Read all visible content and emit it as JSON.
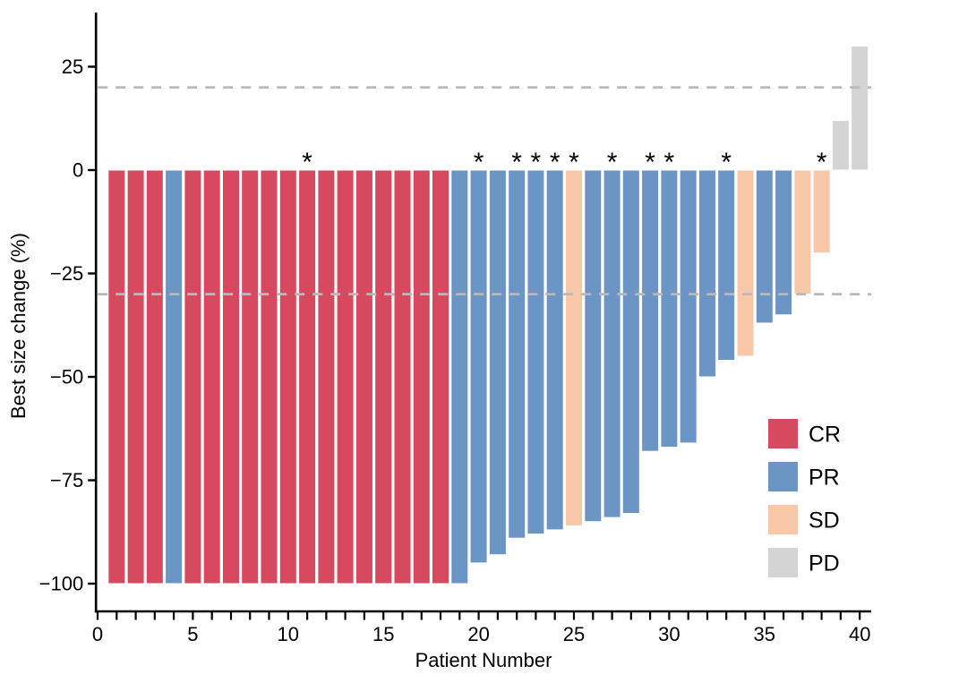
{
  "chart_data": {
    "type": "bar",
    "title": "",
    "xlabel": "Patient Number",
    "ylabel": "Best size change (%)",
    "x": [
      1,
      2,
      3,
      4,
      5,
      6,
      7,
      8,
      9,
      10,
      11,
      12,
      13,
      14,
      15,
      16,
      17,
      18,
      19,
      20,
      21,
      22,
      23,
      24,
      25,
      26,
      27,
      28,
      29,
      30,
      31,
      32,
      33,
      34,
      35,
      36,
      37,
      38,
      39,
      40
    ],
    "values": [
      -100,
      -100,
      -100,
      -100,
      -100,
      -100,
      -100,
      -100,
      -100,
      -100,
      -100,
      -100,
      -100,
      -100,
      -100,
      -100,
      -100,
      -100,
      -100,
      -95,
      -93,
      -89,
      -88,
      -87,
      -86,
      -85,
      -84,
      -83,
      -68,
      -67,
      -66,
      -50,
      -46,
      -45,
      -37,
      -35,
      -30,
      -20,
      12,
      30
    ],
    "response": [
      "CR",
      "CR",
      "CR",
      "PR",
      "CR",
      "CR",
      "CR",
      "CR",
      "CR",
      "CR",
      "CR",
      "CR",
      "CR",
      "CR",
      "CR",
      "CR",
      "CR",
      "CR",
      "PR",
      "PR",
      "PR",
      "PR",
      "PR",
      "PR",
      "SD",
      "PR",
      "PR",
      "PR",
      "PR",
      "PR",
      "PR",
      "PR",
      "PR",
      "SD",
      "PR",
      "PR",
      "SD",
      "SD",
      "PD",
      "PD"
    ],
    "asterisk_patients": [
      11,
      20,
      22,
      23,
      24,
      25,
      27,
      29,
      30,
      33,
      38
    ],
    "asterisk_symbol": "*",
    "ylim": [
      -104,
      38
    ],
    "xlim": [
      -0.1,
      40.6
    ],
    "yticks": [
      25,
      0,
      -25,
      -50,
      -75,
      -100
    ],
    "ytick_labels": [
      "25",
      "0",
      "−25",
      "−50",
      "−75",
      "−100"
    ],
    "xticks_major": [
      0,
      5,
      10,
      15,
      20,
      25,
      30,
      35,
      40
    ],
    "xtick_labels": [
      "0",
      "5",
      "10",
      "15",
      "20",
      "25",
      "30",
      "35",
      "40"
    ],
    "minor_tick_step": 1,
    "reference_lines": [
      20,
      -30
    ],
    "reference_line_color": "#b9b9b9",
    "grid": "off",
    "axis_color": "#000000",
    "text_color": "#000000",
    "bar_outline_color": "#ffffff",
    "colors": {
      "CR": "#d7495e",
      "PR": "#6b95c5",
      "SD": "#f8c7a8",
      "PD": "#d4d4d4"
    },
    "legend_position": "right-lower",
    "legend": [
      {
        "label": "CR",
        "color": "#d7495e"
      },
      {
        "label": "PR",
        "color": "#6b95c5"
      },
      {
        "label": "SD",
        "color": "#f8c7a8"
      },
      {
        "label": "PD",
        "color": "#d4d4d4"
      }
    ]
  }
}
